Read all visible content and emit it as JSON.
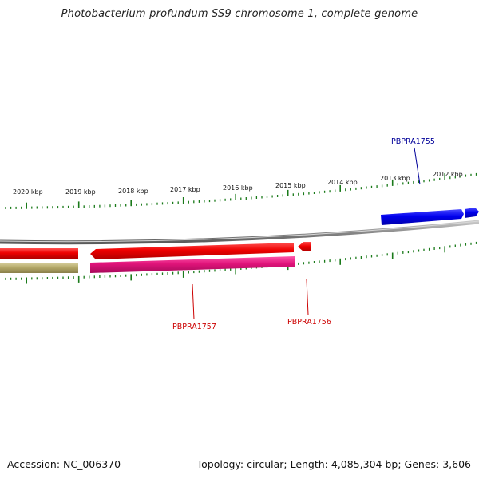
{
  "title": "Photobacterium profundum SS9 chromosome 1, complete genome",
  "footer": {
    "accession": "Accession: NC_006370",
    "stats": "Topology: circular; Length: 4,085,304 bp; Genes: 3,606"
  },
  "colors": {
    "backbone": "#8a8a8a",
    "tick": "#1a7a1a",
    "forward_gene": "#0000ee",
    "reverse_gene": "#ee0000",
    "reverse_feature": "#e0147a",
    "other_feature": "#b5aa6a"
  },
  "scale": {
    "labels": [
      "2020 kbp",
      "2019 kbp",
      "2018 kbp",
      "2017 kbp",
      "2016 kbp",
      "2015 kbp",
      "2014 kbp",
      "2013 kbp",
      "2012 kbp"
    ]
  },
  "genes": [
    {
      "label": "PBPRA1755",
      "color": "#000099"
    },
    {
      "label": "PBPRA1756",
      "color": "#cc0000"
    },
    {
      "label": "PBPRA1757",
      "color": "#cc0000"
    }
  ]
}
